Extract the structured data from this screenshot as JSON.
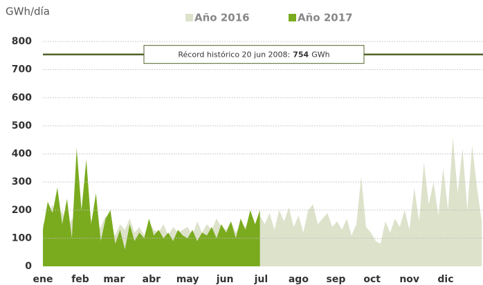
{
  "chart_data": {
    "type": "area",
    "y_label": "GWh/día",
    "xlim": [
      1,
      366
    ],
    "xticks": [
      {
        "value": 1,
        "label": "ene"
      },
      {
        "value": 32,
        "label": "feb"
      },
      {
        "value": 60,
        "label": "mar"
      },
      {
        "value": 91,
        "label": "abr"
      },
      {
        "value": 121,
        "label": "may"
      },
      {
        "value": 152,
        "label": "jun"
      },
      {
        "value": 182,
        "label": "jul"
      },
      {
        "value": 213,
        "label": "ago"
      },
      {
        "value": 244,
        "label": "sep"
      },
      {
        "value": 274,
        "label": "oct"
      },
      {
        "value": 305,
        "label": "nov"
      },
      {
        "value": 335,
        "label": "dic"
      }
    ],
    "ylim": [
      0,
      800
    ],
    "yticks": [
      0,
      100,
      200,
      300,
      400,
      500,
      600,
      700,
      800
    ],
    "grid": true,
    "series": [
      {
        "name": "Año 2016",
        "color": "#dde2cb",
        "x": [
          1,
          5,
          9,
          13,
          17,
          21,
          25,
          29,
          33,
          37,
          41,
          45,
          49,
          53,
          57,
          61,
          65,
          69,
          73,
          77,
          81,
          85,
          89,
          93,
          97,
          101,
          105,
          109,
          113,
          117,
          121,
          125,
          129,
          133,
          137,
          141,
          145,
          149,
          153,
          157,
          161,
          165,
          169,
          173,
          177,
          181,
          185,
          189,
          193,
          197,
          201,
          205,
          209,
          213,
          217,
          221,
          225,
          229,
          233,
          237,
          241,
          245,
          249,
          253,
          257,
          261,
          265,
          269,
          273,
          277,
          281,
          285,
          289,
          293,
          297,
          301,
          305,
          309,
          313,
          317,
          321,
          325,
          329,
          333,
          337,
          341,
          345,
          349,
          353,
          357,
          361,
          365
        ],
        "values": [
          150,
          180,
          220,
          160,
          200,
          130,
          170,
          140,
          200,
          150,
          170,
          120,
          140,
          180,
          130,
          110,
          150,
          130,
          170,
          120,
          140,
          110,
          160,
          130,
          120,
          150,
          110,
          140,
          120,
          130,
          140,
          110,
          160,
          120,
          150,
          130,
          170,
          140,
          130,
          160,
          120,
          150,
          140,
          170,
          130,
          180,
          150,
          190,
          130,
          200,
          160,
          210,
          140,
          180,
          120,
          200,
          220,
          150,
          170,
          190,
          140,
          160,
          130,
          170,
          110,
          150,
          320,
          140,
          120,
          90,
          80,
          160,
          120,
          170,
          140,
          200,
          130,
          280,
          160,
          370,
          220,
          300,
          180,
          350,
          200,
          460,
          260,
          420,
          200,
          430,
          280,
          160
        ]
      },
      {
        "name": "Año 2017",
        "color": "#7aab1f",
        "x": [
          1,
          5,
          9,
          13,
          17,
          21,
          25,
          29,
          33,
          37,
          41,
          45,
          49,
          53,
          57,
          61,
          65,
          69,
          73,
          77,
          81,
          85,
          89,
          93,
          97,
          101,
          105,
          109,
          113,
          117,
          121,
          125,
          129,
          133,
          137,
          141,
          145,
          149,
          153,
          157,
          161,
          165,
          169,
          173,
          177,
          181
        ],
        "values": [
          130,
          230,
          190,
          280,
          150,
          240,
          100,
          420,
          200,
          380,
          150,
          260,
          90,
          170,
          200,
          80,
          130,
          60,
          150,
          90,
          120,
          100,
          170,
          110,
          130,
          100,
          120,
          90,
          130,
          110,
          100,
          130,
          90,
          120,
          110,
          140,
          100,
          150,
          120,
          160,
          100,
          170,
          130,
          200,
          150,
          200
        ]
      }
    ],
    "annotation": {
      "label": "Récord histórico 20 jun 2008:",
      "value": 754,
      "unit": "GWh",
      "color": "#4f6228"
    }
  }
}
